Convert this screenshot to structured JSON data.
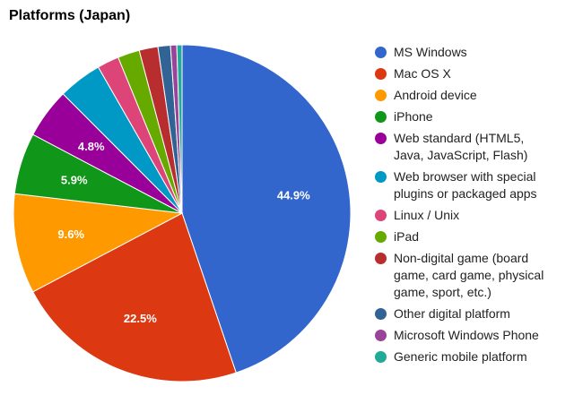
{
  "chart_data": {
    "type": "pie",
    "title": "Platforms (Japan)",
    "legend_position": "right",
    "slices": [
      {
        "label": "MS Windows",
        "value": 44.9,
        "color": "#3366cc",
        "shown_label": "44.9%"
      },
      {
        "label": "Mac OS X",
        "value": 22.5,
        "color": "#dc3912",
        "shown_label": "22.5%"
      },
      {
        "label": "Android device",
        "value": 9.6,
        "color": "#ff9900",
        "shown_label": "9.6%"
      },
      {
        "label": "iPhone",
        "value": 5.9,
        "color": "#109618",
        "shown_label": "5.9%"
      },
      {
        "label": "Web standard (HTML5, Java, JavaScript, Flash)",
        "legend_lines": [
          "Web standard (HTML5,",
          "Java, JavaScript, Flash)"
        ],
        "value": 4.8,
        "color": "#990099",
        "shown_label": "4.8%"
      },
      {
        "label": "Web browser with special plugins or packaged apps",
        "legend_lines": [
          "Web browser with special",
          "plugins or packaged apps"
        ],
        "value": 4.2,
        "color": "#0099c6",
        "shown_label": ""
      },
      {
        "label": "Linux / Unix",
        "value": 2.1,
        "color": "#dd4477",
        "shown_label": ""
      },
      {
        "label": "iPad",
        "value": 2.1,
        "color": "#66aa00",
        "shown_label": ""
      },
      {
        "label": "Non-digital game (board game, card game, physical game, sport, etc.)",
        "legend_lines": [
          "Non-digital game (board",
          "game, card game, physical",
          "game, sport, etc.)"
        ],
        "value": 1.8,
        "color": "#b82e2e",
        "shown_label": ""
      },
      {
        "label": "Other digital platform",
        "value": 1.2,
        "color": "#316395",
        "shown_label": ""
      },
      {
        "label": "Microsoft Windows Phone",
        "value": 0.6,
        "color": "#994499",
        "shown_label": ""
      },
      {
        "label": "Generic mobile platform",
        "value": 0.5,
        "color": "#22aa99",
        "shown_label": ""
      }
    ]
  }
}
